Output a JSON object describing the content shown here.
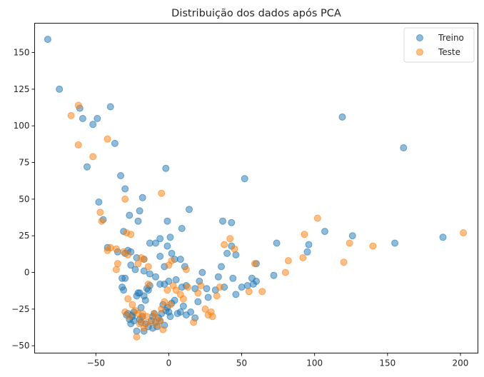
{
  "chart_data": {
    "type": "scatter",
    "title": "Distribuição dos dados após PCA",
    "xlabel": "",
    "ylabel": "",
    "xlim": [
      -92,
      212
    ],
    "ylim": [
      -55,
      170
    ],
    "xticks": [
      -50,
      0,
      50,
      100,
      150,
      200
    ],
    "yticks": [
      -50,
      -25,
      0,
      25,
      50,
      75,
      100,
      125,
      150
    ],
    "grid": false,
    "legend_position": "top-right",
    "series": [
      {
        "name": "Treino",
        "color": "#1f77b4",
        "points": [
          [
            -83,
            159
          ],
          [
            -75,
            125
          ],
          [
            -61,
            112
          ],
          [
            -59,
            105
          ],
          [
            -52,
            101
          ],
          [
            -49,
            105
          ],
          [
            -40,
            113
          ],
          [
            -56,
            72
          ],
          [
            -37,
            88
          ],
          [
            -30,
            57
          ],
          [
            -33,
            66
          ],
          [
            -48,
            48
          ],
          [
            -2,
            71
          ],
          [
            -18,
            51
          ],
          [
            52,
            64
          ],
          [
            119,
            106
          ],
          [
            161,
            85
          ],
          [
            -45,
            36
          ],
          [
            -20,
            42
          ],
          [
            -27,
            39
          ],
          [
            -21,
            35
          ],
          [
            -31,
            28
          ],
          [
            -1,
            35
          ],
          [
            1,
            24
          ],
          [
            -6,
            23
          ],
          [
            9,
            30
          ],
          [
            14,
            43
          ],
          [
            37,
            35
          ],
          [
            43,
            34
          ],
          [
            -42,
            17
          ],
          [
            -35,
            14
          ],
          [
            -30,
            13
          ],
          [
            -28,
            15
          ],
          [
            -26,
            14
          ],
          [
            -22,
            10
          ],
          [
            -17,
            9
          ],
          [
            -13,
            20
          ],
          [
            -9,
            20
          ],
          [
            -1,
            18
          ],
          [
            2,
            13
          ],
          [
            4,
            9
          ],
          [
            -6,
            11
          ],
          [
            -3,
            4
          ],
          [
            8,
            9
          ],
          [
            11,
            4
          ],
          [
            -26,
            5
          ],
          [
            -23,
            2
          ],
          [
            -17,
            1
          ],
          [
            -13,
            -1
          ],
          [
            -9,
            -3
          ],
          [
            -6,
            -8
          ],
          [
            -3,
            -8
          ],
          [
            0,
            -6
          ],
          [
            5,
            -5
          ],
          [
            9,
            -10
          ],
          [
            12,
            -9
          ],
          [
            18,
            -11
          ],
          [
            21,
            -6
          ],
          [
            23,
            0
          ],
          [
            27,
            -17
          ],
          [
            26,
            -11
          ],
          [
            32,
            -12
          ],
          [
            34,
            -3
          ],
          [
            36,
            4
          ],
          [
            38,
            -10
          ],
          [
            40,
            13
          ],
          [
            43,
            18
          ],
          [
            46,
            12
          ],
          [
            44,
            -4
          ],
          [
            46,
            -15
          ],
          [
            50,
            -10
          ],
          [
            54,
            -9
          ],
          [
            57,
            -4
          ],
          [
            58,
            -8
          ],
          [
            60,
            -6
          ],
          [
            60,
            6
          ],
          [
            72,
            -2
          ],
          [
            74,
            20
          ],
          [
            96,
            19
          ],
          [
            95,
            14
          ],
          [
            107,
            28
          ],
          [
            126,
            25
          ],
          [
            155,
            20
          ],
          [
            188,
            24
          ],
          [
            -32,
            -4
          ],
          [
            -30,
            -4
          ],
          [
            -32,
            -10
          ],
          [
            -31,
            -12
          ],
          [
            -28,
            -28
          ],
          [
            -26,
            -35
          ],
          [
            -25,
            -30
          ],
          [
            -24,
            -27
          ],
          [
            -22,
            -16
          ],
          [
            -21,
            -14
          ],
          [
            -20,
            -14
          ],
          [
            -19,
            -24
          ],
          [
            -18,
            -30
          ],
          [
            -17,
            -16
          ],
          [
            -16,
            -19
          ],
          [
            -15,
            -11
          ],
          [
            -14,
            -12
          ],
          [
            -13,
            -9
          ],
          [
            -12,
            -33
          ],
          [
            -11,
            -30
          ],
          [
            -10,
            -28
          ],
          [
            -9,
            -34
          ],
          [
            -8,
            -37
          ],
          [
            -7,
            -31
          ],
          [
            -6,
            -33
          ],
          [
            -5,
            -28
          ],
          [
            -4,
            -22
          ],
          [
            -3,
            -36
          ],
          [
            -2,
            -26
          ],
          [
            -1,
            -24
          ],
          [
            0,
            -27
          ],
          [
            1,
            -30
          ],
          [
            2,
            -21
          ],
          [
            4,
            -19
          ],
          [
            6,
            -28
          ],
          [
            8,
            -27
          ],
          [
            10,
            -23
          ],
          [
            12,
            -29
          ],
          [
            15,
            -27
          ],
          [
            18,
            -31
          ],
          [
            20,
            -20
          ],
          [
            -20,
            -32
          ],
          [
            -22,
            -40
          ],
          [
            -17,
            -40
          ],
          [
            -14,
            -37
          ],
          [
            -11,
            -38
          ],
          [
            -24,
            -33
          ],
          [
            -19,
            -34
          ],
          [
            -27,
            -32
          ],
          [
            -29,
            -29
          ],
          [
            -16,
            -35
          ],
          [
            -25,
            -29
          ]
        ]
      },
      {
        "name": "Teste",
        "color": "#ff7f0e",
        "points": [
          [
            -62,
            114
          ],
          [
            -67,
            107
          ],
          [
            -62,
            87
          ],
          [
            -52,
            79
          ],
          [
            -42,
            91
          ],
          [
            -5,
            54
          ],
          [
            -30,
            50
          ],
          [
            -47,
            41
          ],
          [
            -46,
            35
          ],
          [
            -29,
            27
          ],
          [
            -26,
            26
          ],
          [
            -42,
            15
          ],
          [
            -40,
            17
          ],
          [
            -36,
            16
          ],
          [
            -35,
            6
          ],
          [
            -36,
            2
          ],
          [
            -31,
            14
          ],
          [
            -28,
            12
          ],
          [
            -21,
            6
          ],
          [
            -19,
            10
          ],
          [
            -17,
            9
          ],
          [
            -14,
            4
          ],
          [
            0,
            5
          ],
          [
            2,
            8
          ],
          [
            12,
            2
          ],
          [
            38,
            19
          ],
          [
            42,
            23
          ],
          [
            45,
            16
          ],
          [
            59,
            6
          ],
          [
            82,
            8
          ],
          [
            80,
            0
          ],
          [
            92,
            10
          ],
          [
            93,
            26
          ],
          [
            102,
            37
          ],
          [
            120,
            7
          ],
          [
            124,
            20
          ],
          [
            140,
            18
          ],
          [
            202,
            27
          ],
          [
            -28,
            -18
          ],
          [
            -25,
            -22
          ],
          [
            -23,
            -26
          ],
          [
            -21,
            -28
          ],
          [
            -19,
            -31
          ],
          [
            -17,
            -38
          ],
          [
            -16,
            -35
          ],
          [
            -15,
            -30
          ],
          [
            -14,
            -8
          ],
          [
            -12,
            -34
          ],
          [
            -10,
            -28
          ],
          [
            -9,
            -31
          ],
          [
            -8,
            -36
          ],
          [
            -6,
            -33
          ],
          [
            -5,
            -25
          ],
          [
            -4,
            -39
          ],
          [
            -3,
            -20
          ],
          [
            -1,
            -12
          ],
          [
            1,
            -22
          ],
          [
            3,
            -9
          ],
          [
            5,
            -12
          ],
          [
            8,
            -15
          ],
          [
            10,
            -18
          ],
          [
            13,
            -10
          ],
          [
            17,
            -34
          ],
          [
            20,
            -14
          ],
          [
            22,
            -9
          ],
          [
            25,
            -25
          ],
          [
            27,
            -29
          ],
          [
            29,
            -27
          ],
          [
            30,
            -30
          ],
          [
            33,
            -16
          ],
          [
            35,
            -10
          ],
          [
            55,
            -13
          ],
          [
            64,
            -13
          ],
          [
            -30,
            -27
          ],
          [
            -27,
            -30
          ],
          [
            -22,
            -44
          ],
          [
            -20,
            -35
          ],
          [
            -18,
            -28
          ]
        ]
      }
    ]
  }
}
